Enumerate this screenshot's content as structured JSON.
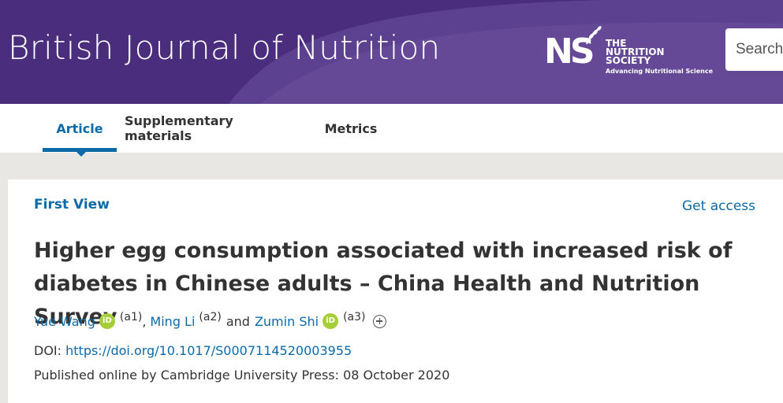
{
  "header": {
    "journal_title": "British Journal of Nutrition",
    "logo": {
      "mark": "NS",
      "line1": "THE",
      "line2": "NUTRITION",
      "line3": "SOCIETY",
      "tagline": "Advancing Nutritional Science"
    },
    "search": {
      "placeholder": "Search"
    },
    "colors": {
      "banner": "#4a2d7c",
      "banner_arc": "#6a4f9c"
    }
  },
  "tabs": [
    {
      "label": "Article",
      "active": true
    },
    {
      "label": "Supplementary materials",
      "active": false
    },
    {
      "label": "Metrics",
      "active": false
    }
  ],
  "article": {
    "section_label": "First View",
    "get_access_label": "Get access",
    "title": "Higher egg consumption associated with increased risk of diabetes in Chinese adults – China Health and Nutrition Survey",
    "authors": [
      {
        "name": "Yue Wang",
        "orcid": true,
        "affiliation": "(a1)"
      },
      {
        "name": "Ming Li",
        "orcid": false,
        "affiliation": "(a2)"
      },
      {
        "name": "Zumin Shi",
        "orcid": true,
        "affiliation": "(a3)"
      }
    ],
    "author_separator_1": ",",
    "author_separator_2": "and",
    "orcid_icon_text": "iD",
    "doi_label": "DOI:",
    "doi_url": "https://doi.org/10.1017/S0007114520003955",
    "published": "Published online by Cambridge University Press: 08 October 2020"
  },
  "colors": {
    "link": "#0d6aa8",
    "orcid": "#a6ce39"
  }
}
